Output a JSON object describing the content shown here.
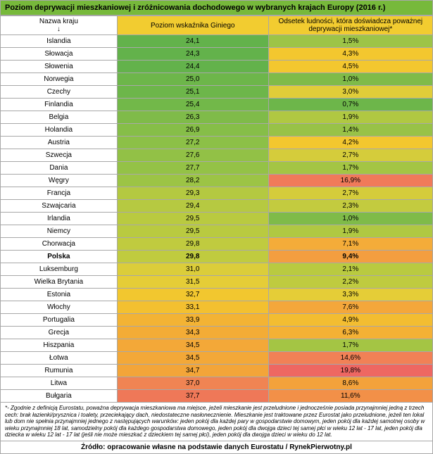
{
  "title": "Poziom deprywacji mieszkaniowej i zróżnicowania dochodowego w wybranych krajach Europy (2016 r.)",
  "headers": {
    "country": "Nazwa kraju\n↓",
    "gini": "Poziom wskaźnika Giniego",
    "deprivation": "Odsetek ludności, która doświadcza poważnej deprywacji mieszkaniowej*"
  },
  "rows": [
    {
      "c": "Islandia",
      "g": "24,1",
      "gc": "#63b24b",
      "d": "1,5%",
      "dc": "#9dc447"
    },
    {
      "c": "Słowacja",
      "g": "24,3",
      "gc": "#63b24b",
      "d": "4,3%",
      "dc": "#f3c72f"
    },
    {
      "c": "Słowenia",
      "g": "24,4",
      "gc": "#63b24b",
      "d": "4,5%",
      "dc": "#f3c72f"
    },
    {
      "c": "Norwegia",
      "g": "25,0",
      "gc": "#6db64a",
      "d": "1,0%",
      "dc": "#7fbb49"
    },
    {
      "c": "Czechy",
      "g": "25,1",
      "gc": "#6db64a",
      "d": "3,0%",
      "dc": "#e0cd39"
    },
    {
      "c": "Finlandia",
      "g": "25,4",
      "gc": "#72b849",
      "d": "0,7%",
      "dc": "#6db64a"
    },
    {
      "c": "Belgia",
      "g": "26,3",
      "gc": "#7fbb49",
      "d": "1,9%",
      "dc": "#b0c842"
    },
    {
      "c": "Holandia",
      "g": "26,9",
      "gc": "#86be48",
      "d": "1,4%",
      "dc": "#98c247"
    },
    {
      "c": "Austria",
      "g": "27,2",
      "gc": "#8cc047",
      "d": "4,2%",
      "dc": "#f3c72f"
    },
    {
      "c": "Szwecja",
      "g": "27,6",
      "gc": "#92c146",
      "d": "2,7%",
      "dc": "#d5cc3b"
    },
    {
      "c": "Dania",
      "g": "27,7",
      "gc": "#94c246",
      "d": "1,7%",
      "dc": "#a4c544"
    },
    {
      "c": "Węgry",
      "g": "28,2",
      "gc": "#9cc445",
      "d": "16,9%",
      "dc": "#f07a5a"
    },
    {
      "c": "Francja",
      "g": "29,3",
      "gc": "#b4c941",
      "d": "2,7%",
      "dc": "#d5cc3b"
    },
    {
      "c": "Szwajcaria",
      "g": "29,4",
      "gc": "#b6c941",
      "d": "2,3%",
      "dc": "#c3cb3f"
    },
    {
      "c": "Irlandia",
      "g": "29,5",
      "gc": "#b9ca40",
      "d": "1,0%",
      "dc": "#7fbb49"
    },
    {
      "c": "Niemcy",
      "g": "29,5",
      "gc": "#b9ca40",
      "d": "1,9%",
      "dc": "#b0c842"
    },
    {
      "c": "Chorwacja",
      "g": "29,8",
      "gc": "#c0cb3f",
      "d": "7,1%",
      "dc": "#f4ac39"
    },
    {
      "c": "Polska",
      "g": "29,8",
      "gc": "#c0cb3f",
      "d": "9,4%",
      "dc": "#f39e40",
      "bold": true
    },
    {
      "c": "Luksemburg",
      "g": "31,0",
      "gc": "#dbcd3a",
      "d": "2,1%",
      "dc": "#b9ca40"
    },
    {
      "c": "Wielka Brytania",
      "g": "31,5",
      "gc": "#e5cd37",
      "d": "2,2%",
      "dc": "#bfcb3f"
    },
    {
      "c": "Estonia",
      "g": "32,7",
      "gc": "#f2c72f",
      "d": "3,3%",
      "dc": "#e5cd37"
    },
    {
      "c": "Włochy",
      "g": "33,1",
      "gc": "#f3c030",
      "d": "7,6%",
      "dc": "#f4a73b"
    },
    {
      "c": "Portugalia",
      "g": "33,9",
      "gc": "#f3b334",
      "d": "4,9%",
      "dc": "#f3bd31"
    },
    {
      "c": "Grecja",
      "g": "34,3",
      "gc": "#f3ac36",
      "d": "6,3%",
      "dc": "#f4b135"
    },
    {
      "c": "Hiszpania",
      "g": "34,5",
      "gc": "#f3a838",
      "d": "1,7%",
      "dc": "#a4c544"
    },
    {
      "c": "Łotwa",
      "g": "34,5",
      "gc": "#f3a838",
      "d": "14,6%",
      "dc": "#f18156"
    },
    {
      "c": "Rumunia",
      "g": "34,7",
      "gc": "#f3a539",
      "d": "19,8%",
      "dc": "#ee6762"
    },
    {
      "c": "Litwa",
      "g": "37,0",
      "gc": "#f08453",
      "d": "8,6%",
      "dc": "#f3a23b"
    },
    {
      "c": "Bułgaria",
      "g": "37,7",
      "gc": "#ef7858",
      "d": "11,6%",
      "dc": "#f29048"
    }
  ],
  "footnote": "*- Zgodnie z definicją Eurostatu, poważna deprywacja mieszkaniowa ma miejsce, jeżeli mieszkanie jest przeludnione i jednocześnie posiada przynajmniej jedną z trzech cech: brak łazienki/prysznica i toalety, przeciekający dach, niedostateczne nasłonecznienie. Mieszkanie jest traktowane przez Eurostat jako przeludnione, jeżeli ten lokal lub dom nie spełnia przynajmniej jednego z następujących warunków: jeden pokój dla każdej pary w gospodarstwie domowym, jeden pokój dla każdej samotnej osoby w wieku przynajmniej 18 lat, samodzielny pokój dla każdego gospodarstwa domowego, jeden pokój dla dwojga dzieci tej samej płci w wieku 12 lat - 17 lat, jeden pokój dla dziecka w wieku 12 lat - 17 lat (jeśli nie może mieszkać z dzieckiem tej samej płci), jeden pokój dla dwojga dzieci w wieku do 12 lat.",
  "source": "Źródło: opracowanie własne na podstawie danych Eurostatu / RynekPierwotny.pl"
}
